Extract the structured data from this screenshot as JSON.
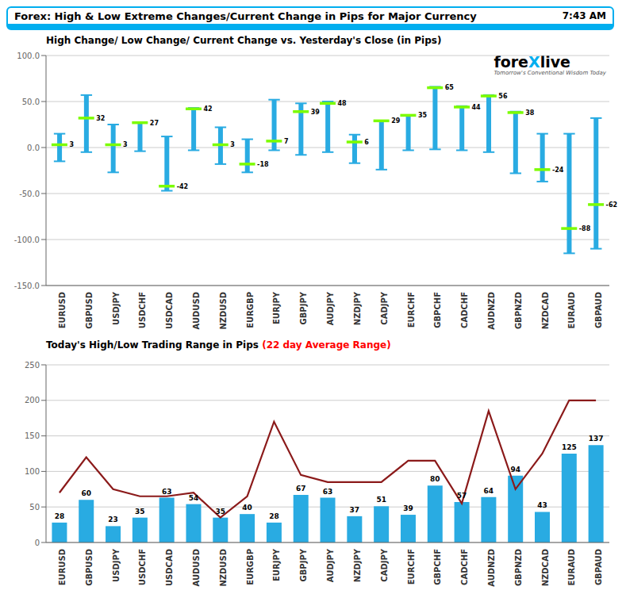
{
  "title": "Forex:  High & Low Extreme Changes/Current Change in Pips for Major Currency",
  "subtitle": "7:43 AM",
  "chart_data": [
    {
      "type": "range",
      "title": "High Change/ Low Change/ Current Change vs. Yesterday's Close (in Pips)",
      "categories": [
        "EURUSD",
        "GBPUSD",
        "USDJPY",
        "USDCHF",
        "USDCAD",
        "AUDUSD",
        "NZDUSD",
        "EURGBP",
        "EURJPY",
        "GBPJPY",
        "AUDJPY",
        "NZDJPY",
        "CADJPY",
        "EURCHF",
        "GBPCHF",
        "CADCHF",
        "AUDNZD",
        "GBPNZD",
        "NZDCAD",
        "EURAUD",
        "GBPAUD"
      ],
      "high": [
        15,
        57,
        25,
        27,
        12,
        43,
        22,
        9,
        52,
        48,
        50,
        14,
        29,
        35,
        66,
        45,
        57,
        39,
        15,
        15,
        32
      ],
      "low": [
        -15,
        -5,
        -27,
        -4,
        -47,
        -3,
        -18,
        -27,
        -3,
        -8,
        -5,
        -17,
        -24,
        -3,
        -2,
        -3,
        -5,
        -28,
        -37,
        -115,
        -110
      ],
      "values": [
        3,
        32,
        3,
        27,
        -42,
        42,
        3,
        -18,
        7,
        39,
        48,
        6,
        29,
        35,
        65,
        44,
        56,
        38,
        -24,
        -88,
        -62
      ],
      "data_labels": true,
      "color": "#29ABE2",
      "ylim": [
        -150,
        100
      ],
      "yticks": [
        {
          "value": -150,
          "label": "-150.0"
        },
        {
          "value": -100,
          "label": "-100.0"
        },
        {
          "value": -50,
          "label": "-50.0"
        },
        {
          "value": 0,
          "label": "0.0"
        },
        {
          "value": 50,
          "label": "50.0"
        },
        {
          "value": 100,
          "label": "100.0"
        }
      ],
      "grid": true,
      "annotations": [
        "fore",
        "X",
        "live",
        "Tomorrow's Conventional Wisdom Today"
      ]
    },
    {
      "type": "bar",
      "title": "Today's High/Low Trading Range in Pips ",
      "subtitle": "(22 day Average Range)",
      "categories": [
        "EURUSD",
        "GBPUSD",
        "USDJPY",
        "USDCHF",
        "USDCAD",
        "AUDUSD",
        "NZDUSD",
        "EURGBP",
        "EURJPY",
        "GBPJPY",
        "AUDJPY",
        "NZDJPY",
        "CADJPY",
        "EURCHF",
        "GBPCHF",
        "CADCHF",
        "AUDNZD",
        "GBPNZD",
        "NZDCAD",
        "EURAUD",
        "GBPAUD"
      ],
      "series": [
        {
          "type": "bar",
          "color": "#29ABE2",
          "values": [
            28,
            60,
            23,
            35,
            63,
            54,
            35,
            40,
            28,
            67,
            63,
            37,
            51,
            39,
            80,
            57,
            64,
            94,
            43,
            125,
            137
          ],
          "data_labels": true
        },
        {
          "type": "line",
          "color": "#8B1A1A",
          "values": [
            70,
            120,
            75,
            65,
            65,
            70,
            35,
            65,
            170,
            95,
            85,
            85,
            85,
            115,
            115,
            55,
            185,
            75,
            125,
            200,
            200
          ]
        }
      ],
      "ylim": [
        0,
        250
      ],
      "yticks": [
        0,
        50,
        100,
        150,
        200,
        250
      ],
      "grid": true
    }
  ]
}
